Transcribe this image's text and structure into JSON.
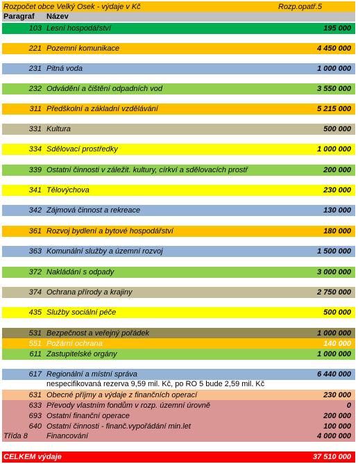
{
  "title": "Rozpočet obce Velký Osek - výdaje v Kč",
  "opatreni": "Rozp.opatř.5",
  "headers": {
    "paragraf": "Paragraf",
    "nazev": "Název"
  },
  "rows": [
    {
      "code": "103",
      "name": "Lesní hospodářství",
      "value": "195 000",
      "color": "#00b050"
    },
    {
      "code": "221",
      "name": "Pozemní komunikace",
      "value": "4 450 000",
      "color": "#ffc000"
    },
    {
      "code": "231",
      "name": "Pitná voda",
      "value": "1 000 000",
      "color": "#95b3d7"
    },
    {
      "code": "232",
      "name": "Odvádění a čištění odpadních vod",
      "value": "3 550 000",
      "color": "#92d050"
    },
    {
      "code": "311",
      "name": "Předškolní a základní vzdělávání",
      "value": "5 215 000",
      "color": "#ffc000"
    },
    {
      "code": "331",
      "name": "Kultura",
      "value": "500 000",
      "color": "#c4bd97"
    },
    {
      "code": "334",
      "name": "Sdělovací prostředky",
      "value": "1 000 000",
      "color": "#ffff00"
    },
    {
      "code": "339",
      "name": "Ostatní činnosti v záležit. kultury, církví a sdělovacích prostř",
      "value": "200 000",
      "color": "#92d050"
    },
    {
      "code": "341",
      "name": "Tělovýchova",
      "value": "230 000",
      "color": "#ffff00"
    },
    {
      "code": "342",
      "name": "Zájmová činnost a rekreace",
      "value": "130 000",
      "color": "#95b3d7"
    },
    {
      "code": "361",
      "name": "Rozvoj bydlení a bytové hospodářství",
      "value": "180 000",
      "color": "#ffc000"
    },
    {
      "code": "363",
      "name": "Komunální služby a územní rozvoj",
      "value": "1 500 000",
      "color": "#95b3d7"
    },
    {
      "code": "372",
      "name": "Nakládání s odpady",
      "value": "3 000 000",
      "color": "#92d050"
    },
    {
      "code": "374",
      "name": "Ochrana přírody a krajiny",
      "value": "2 750 000",
      "color": "#c4bd97"
    },
    {
      "code": "435",
      "name": "Služby sociální péče",
      "value": "500 000",
      "color": "#ffff00"
    },
    {
      "code": "531",
      "name": "Bezpečnost a veřejný pořádek",
      "value": "1 000 000",
      "color": "#948a54"
    },
    {
      "code": "551",
      "name": "Požární ochrana",
      "value": "140 000",
      "color": "#ffc000"
    },
    {
      "code": "611",
      "name": "Zastupitelské orgány",
      "value": "1 000 000",
      "color": "#92d050"
    },
    {
      "code": "617",
      "name": "Regionální a místní správa",
      "value": "6 440 000",
      "color": "#95b3d7"
    },
    {
      "code": "631",
      "name": "Obecné příjmy a výdaje z finančních operací",
      "value": "230 000",
      "color": "#fabf8f"
    },
    {
      "code": "633",
      "name": "Převody vlastním fondům v rozp. územní úrovně",
      "value": "0",
      "color": "#da9694"
    },
    {
      "code": "693",
      "name": "Ostatní finanční operace",
      "value": "200 000",
      "color": "#da9694"
    },
    {
      "code": "640",
      "name": "Ostatní činnosti - finanč.vypořádání min.let",
      "value": "100 000",
      "color": "#da9694"
    },
    {
      "code": "Třída 8",
      "name": "Financování",
      "value": "4 000 000",
      "color": "#da9694"
    }
  ],
  "note": "nespecifikovaná rezerva 9,59 mil. Kč, po RO 5 bude 2,59 mil. Kč",
  "total": {
    "label": "CELKEM výdaje",
    "value": "37 510 000",
    "color": "#ff0000"
  }
}
